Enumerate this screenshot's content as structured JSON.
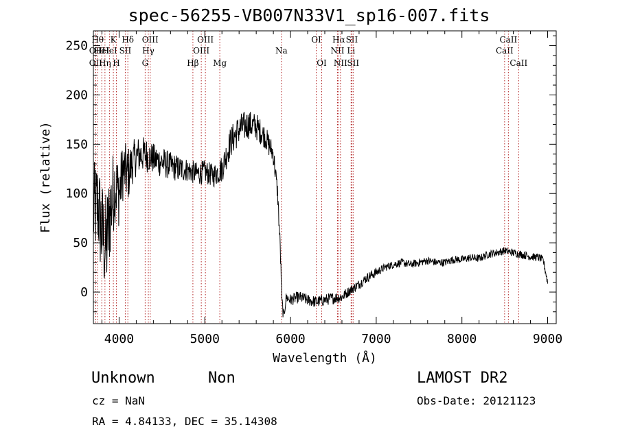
{
  "chart_data": {
    "type": "line",
    "title": "spec-56255-VB007N33V1_sp16-007.fits",
    "xlabel": "Wavelength (Å)",
    "ylabel": "Flux (relative)",
    "xlim": [
      3700,
      9100
    ],
    "ylim": [
      -32,
      265
    ],
    "xticks": [
      4000,
      5000,
      6000,
      7000,
      8000,
      9000
    ],
    "yticks": [
      0,
      50,
      100,
      150,
      200,
      250
    ],
    "grid": false,
    "series": [
      {
        "name": "flux",
        "x": [
          3700,
          3750,
          3800,
          3850,
          3900,
          3950,
          4000,
          4050,
          4100,
          4150,
          4200,
          4300,
          4400,
          4500,
          4600,
          4700,
          4800,
          4900,
          5000,
          5100,
          5200,
          5300,
          5400,
          5500,
          5600,
          5700,
          5800,
          5850,
          5880,
          5900,
          5920,
          5950,
          6000,
          6100,
          6200,
          6300,
          6400,
          6500,
          6600,
          6700,
          6800,
          6900,
          7000,
          7100,
          7200,
          7300,
          7400,
          7500,
          7600,
          7700,
          7800,
          7900,
          8000,
          8100,
          8200,
          8300,
          8400,
          8500,
          8600,
          8700,
          8800,
          8900,
          8950,
          9000
        ],
        "y": [
          80,
          90,
          60,
          45,
          85,
          110,
          100,
          125,
          118,
          130,
          138,
          140,
          135,
          132,
          128,
          125,
          124,
          120,
          122,
          118,
          125,
          152,
          165,
          170,
          168,
          158,
          140,
          100,
          45,
          -10,
          -25,
          -5,
          -8,
          -5,
          -8,
          -10,
          -8,
          -6,
          -5,
          2,
          8,
          15,
          20,
          25,
          28,
          30,
          28,
          30,
          32,
          30,
          30,
          33,
          33,
          35,
          34,
          38,
          40,
          42,
          40,
          38,
          36,
          35,
          32,
          10
        ],
        "noise": [
          50,
          50,
          55,
          55,
          50,
          40,
          35,
          30,
          30,
          22,
          20,
          18,
          16,
          16,
          14,
          14,
          12,
          12,
          12,
          12,
          14,
          16,
          16,
          15,
          14,
          12,
          12,
          10,
          10,
          8,
          6,
          6,
          6,
          6,
          6,
          6,
          6,
          6,
          6,
          5,
          5,
          5,
          5,
          4,
          4,
          4,
          4,
          4,
          4,
          4,
          4,
          4,
          4,
          4,
          4,
          4,
          4,
          4,
          4,
          4,
          4,
          4,
          4,
          4
        ]
      }
    ],
    "line_markers": [
      {
        "wave": 3727,
        "label": "OII",
        "row": 1
      },
      {
        "wave": 3727,
        "label": "OII",
        "row": 2
      },
      {
        "wave": 3750,
        "label": "Hθ",
        "row": 0
      },
      {
        "wave": 3798,
        "label": "HeI",
        "row": 1
      },
      {
        "wave": 3835,
        "label": "Hη",
        "row": 2
      },
      {
        "wave": 3889,
        "label": "HeI",
        "row": 1
      },
      {
        "wave": 3933,
        "label": "K",
        "row": 0
      },
      {
        "wave": 3968,
        "label": "H",
        "row": 2
      },
      {
        "wave": 4072,
        "label": "SII",
        "row": 1
      },
      {
        "wave": 4102,
        "label": "Hδ",
        "row": 0
      },
      {
        "wave": 4304,
        "label": "G",
        "row": 2
      },
      {
        "wave": 4341,
        "label": "Hγ",
        "row": 1
      },
      {
        "wave": 4363,
        "label": "OIII",
        "row": 0
      },
      {
        "wave": 4861,
        "label": "Hβ",
        "row": 2
      },
      {
        "wave": 4959,
        "label": "OIII",
        "row": 1
      },
      {
        "wave": 5007,
        "label": "OIII",
        "row": 0
      },
      {
        "wave": 5175,
        "label": "Mg",
        "row": 2
      },
      {
        "wave": 5894,
        "label": "Na",
        "row": 1
      },
      {
        "wave": 6300,
        "label": "OI",
        "row": 0
      },
      {
        "wave": 6364,
        "label": "OI",
        "row": 2
      },
      {
        "wave": 6548,
        "label": "NII",
        "row": 1
      },
      {
        "wave": 6563,
        "label": "Hα",
        "row": 0
      },
      {
        "wave": 6583,
        "label": "NII",
        "row": 2
      },
      {
        "wave": 6707,
        "label": "Li",
        "row": 1
      },
      {
        "wave": 6716,
        "label": "SII",
        "row": 0
      },
      {
        "wave": 6731,
        "label": "SII",
        "row": 2
      },
      {
        "wave": 8498,
        "label": "CaII",
        "row": 1
      },
      {
        "wave": 8542,
        "label": "CaII",
        "row": 0
      },
      {
        "wave": 8662,
        "label": "CaII",
        "row": 2
      }
    ]
  },
  "info": {
    "object_class": "Unknown",
    "object_subclass": "Non",
    "survey": "LAMOST DR2",
    "cz": "cz = NaN",
    "obs_date": "Obs-Date: 20121123",
    "radec": "RA =   4.84133, DEC =  35.14308"
  }
}
